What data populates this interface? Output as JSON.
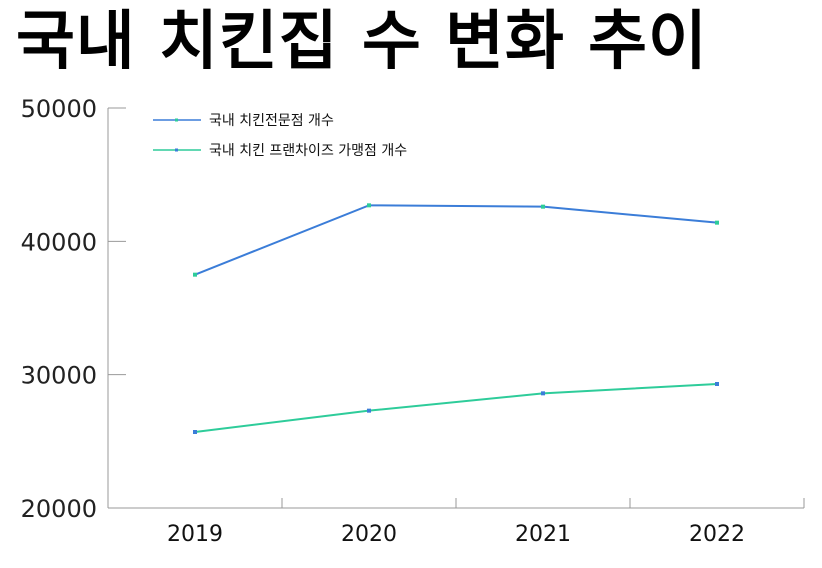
{
  "chart_data": {
    "type": "line",
    "title": "국내 치킨집 수 변화 추이",
    "categories": [
      "2019",
      "2020",
      "2021",
      "2022"
    ],
    "series": [
      {
        "name": "국내 치킨전문점 개수",
        "color": "#3b7dd8",
        "marker_color": "#2ecc9a",
        "values": [
          37500,
          42700,
          42600,
          41400
        ]
      },
      {
        "name": "국내 치킨 프랜차이즈 가맹점 개수",
        "color": "#2ecc9a",
        "marker_color": "#3b7dd8",
        "values": [
          25700,
          27300,
          28600,
          29300
        ]
      }
    ],
    "ylim": [
      20000,
      50000
    ],
    "yticks": [
      "20000",
      "30000",
      "40000",
      "50000"
    ],
    "xlabel": "",
    "ylabel": "",
    "legend_position": "top-left",
    "grid": false
  }
}
